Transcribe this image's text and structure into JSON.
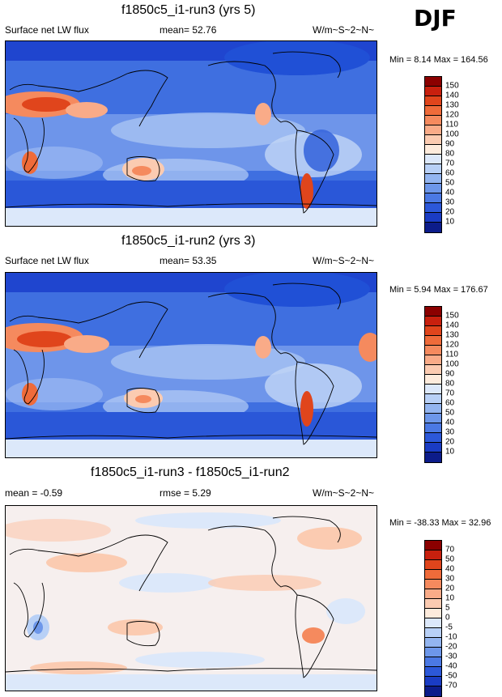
{
  "season": "DJF",
  "panels": [
    {
      "title": "f1850c5_i1-run3 (yrs 5)",
      "left_text": "Surface net LW flux",
      "center_text": "mean=  52.76",
      "units": "W/m~S~2~N~",
      "minmax": "Min =  8.14 Max = 164.56",
      "ticks": [
        "150",
        "140",
        "130",
        "120",
        "110",
        "100",
        "90",
        "80",
        "70",
        "60",
        "50",
        "40",
        "30",
        "20",
        "10"
      ],
      "colors": [
        "#8b0000",
        "#c8200e",
        "#e0451c",
        "#ef6b3a",
        "#f58a5e",
        "#f9ab88",
        "#fbcbb1",
        "#fdebdc",
        "#dce8fa",
        "#b8d0f6",
        "#93b5f0",
        "#6d97ea",
        "#4b79e4",
        "#2c58d9",
        "#1a3cc4",
        "#0c1c8a"
      ]
    },
    {
      "title": "f1850c5_i1-run2 (yrs 3)",
      "left_text": "Surface net LW flux",
      "center_text": "mean=  53.35",
      "units": "W/m~S~2~N~",
      "minmax": "Min =  5.94 Max = 176.67",
      "ticks": [
        "150",
        "140",
        "130",
        "120",
        "110",
        "100",
        "90",
        "80",
        "70",
        "60",
        "50",
        "40",
        "30",
        "20",
        "10"
      ],
      "colors": [
        "#8b0000",
        "#c8200e",
        "#e0451c",
        "#ef6b3a",
        "#f58a5e",
        "#f9ab88",
        "#fbcbb1",
        "#fdebdc",
        "#dce8fa",
        "#b8d0f6",
        "#93b5f0",
        "#6d97ea",
        "#4b79e4",
        "#2c58d9",
        "#1a3cc4",
        "#0c1c8a"
      ]
    },
    {
      "title": "f1850c5_i1-run3 - f1850c5_i1-run2",
      "left_text": "mean =  -0.59",
      "center_text": "rmse =   5.29",
      "units": "W/m~S~2~N~",
      "minmax": "Min = -38.33 Max =  32.96",
      "ticks": [
        "70",
        "50",
        "40",
        "30",
        "20",
        "10",
        "5",
        "0",
        "-5",
        "-10",
        "-20",
        "-30",
        "-40",
        "-50",
        "-70"
      ],
      "colors": [
        "#8b0000",
        "#c8200e",
        "#e0451c",
        "#ef6b3a",
        "#f58a5e",
        "#f9ab88",
        "#fbcbb1",
        "#fdebdc",
        "#dce8fa",
        "#b8d0f6",
        "#93b5f0",
        "#6d97ea",
        "#4b79e4",
        "#2c58d9",
        "#1a3cc4",
        "#0c1c8a"
      ]
    }
  ]
}
